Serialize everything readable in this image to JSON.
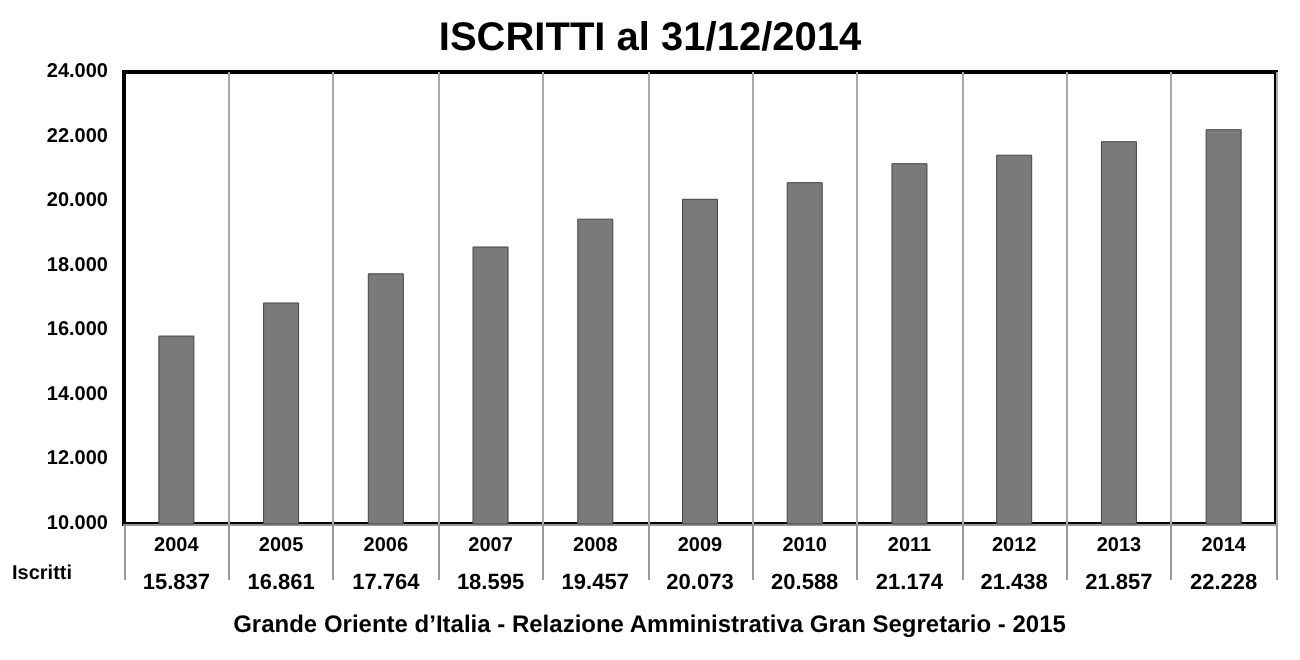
{
  "chart_data": {
    "type": "bar",
    "title": "ISCRITTI al 31/12/2014",
    "categories": [
      "2004",
      "2005",
      "2006",
      "2007",
      "2008",
      "2009",
      "2010",
      "2011",
      "2012",
      "2013",
      "2014"
    ],
    "series": [
      {
        "name": "Iscritti",
        "color": "#7a7a7a",
        "values": [
          15837,
          16861,
          17764,
          18595,
          19457,
          20073,
          20588,
          21174,
          21438,
          21857,
          22228
        ],
        "value_labels": [
          "15.837",
          "16.861",
          "17.764",
          "18.595",
          "19.457",
          "20.073",
          "20.588",
          "21.174",
          "21.438",
          "21.857",
          "22.228"
        ]
      }
    ],
    "ylim": [
      10000,
      24000
    ],
    "yticks": [
      {
        "value": 10000,
        "label": "10.000"
      },
      {
        "value": 12000,
        "label": "12.000"
      },
      {
        "value": 14000,
        "label": "14.000"
      },
      {
        "value": 16000,
        "label": "16.000"
      },
      {
        "value": 18000,
        "label": "18.000"
      },
      {
        "value": 20000,
        "label": "20.000"
      },
      {
        "value": 22000,
        "label": "22.000"
      },
      {
        "value": 24000,
        "label": "24.000"
      }
    ],
    "grid": "x",
    "annotations": [
      "Grande Oriente d’Italia - Relazione Amministrativa Gran Segretario - 2015"
    ]
  }
}
